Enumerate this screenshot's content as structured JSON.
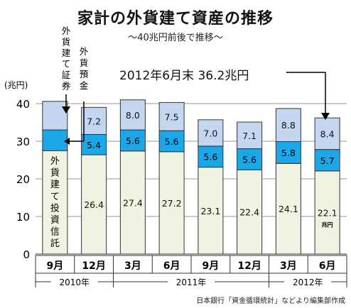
{
  "title": "家計の外貨建て資産の推移",
  "subtitle": "〜40兆円前後で推移〜",
  "source": "日本銀行「資金循環統計」などより編集部作成",
  "annotation": "2012年6月末 36.2兆円",
  "colors": {
    "trust": "#eef3e2",
    "deposit": "#1aa8e8",
    "securities": "#c5d6f0",
    "border": "#333333"
  },
  "chart_data": {
    "type": "bar",
    "stacked": true,
    "categories": [
      "9月",
      "12月",
      "3月",
      "6月",
      "9月",
      "12月",
      "3月",
      "6月"
    ],
    "year_groups": [
      {
        "label": "2010年",
        "span": [
          0,
          1
        ]
      },
      {
        "label": "2011年",
        "span": [
          2,
          5
        ]
      },
      {
        "label": "2012年",
        "span": [
          6,
          7
        ]
      }
    ],
    "series": [
      {
        "name": "外貨建て投資信託",
        "values": [
          27.5,
          26.4,
          27.4,
          27.2,
          23.1,
          22.4,
          24.1,
          22.1
        ],
        "labels": [
          "",
          "26.4",
          "27.4",
          "27.2",
          "23.1",
          "22.4",
          "24.1",
          "22.1"
        ]
      },
      {
        "name": "外貨預金",
        "values": [
          5.5,
          5.4,
          5.6,
          5.6,
          5.6,
          5.6,
          5.8,
          5.7
        ],
        "labels": [
          "",
          "5.4",
          "5.6",
          "5.6",
          "5.6",
          "5.6",
          "5.8",
          "5.7"
        ]
      },
      {
        "name": "外貨建て証券",
        "values": [
          7.6,
          7.2,
          8.0,
          7.5,
          7.0,
          7.1,
          8.8,
          8.4
        ],
        "labels": [
          "",
          "7.2",
          "8.0",
          "7.5",
          "7.0",
          "7.1",
          "8.8",
          "8.4"
        ]
      }
    ],
    "unit_label": "(兆円)",
    "last_bar_unit": "兆円",
    "ylim": [
      0,
      40
    ],
    "yticks": [
      0,
      10,
      20,
      30,
      40
    ],
    "grid": true
  }
}
